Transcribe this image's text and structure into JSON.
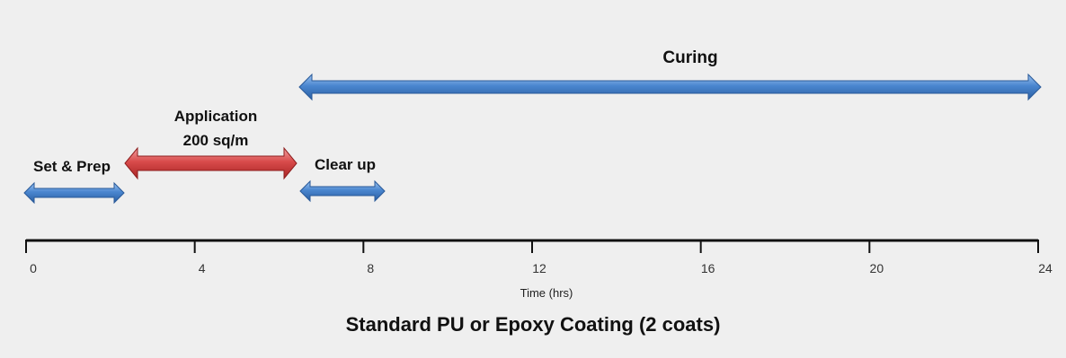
{
  "chart_data": {
    "type": "timeline",
    "title": "Standard PU or Epoxy Coating (2 coats)",
    "xlabel": "Time (hrs)",
    "xlim": [
      0,
      24
    ],
    "ticks": [
      "0",
      "4",
      "8",
      "12",
      "16",
      "20",
      "24"
    ],
    "phases": [
      {
        "label": "Set & Prep",
        "start": 0,
        "end": 2.3,
        "color": "#4a86cf"
      },
      {
        "label": "Application\n200 sq/m",
        "start": 2.3,
        "end": 6.4,
        "color": "#d84a4a"
      },
      {
        "label": "Clear up",
        "start": 6.4,
        "end": 8.5,
        "color": "#4a86cf"
      },
      {
        "label": "Curing",
        "start": 6.4,
        "end": 24,
        "color": "#4a86cf"
      }
    ]
  }
}
